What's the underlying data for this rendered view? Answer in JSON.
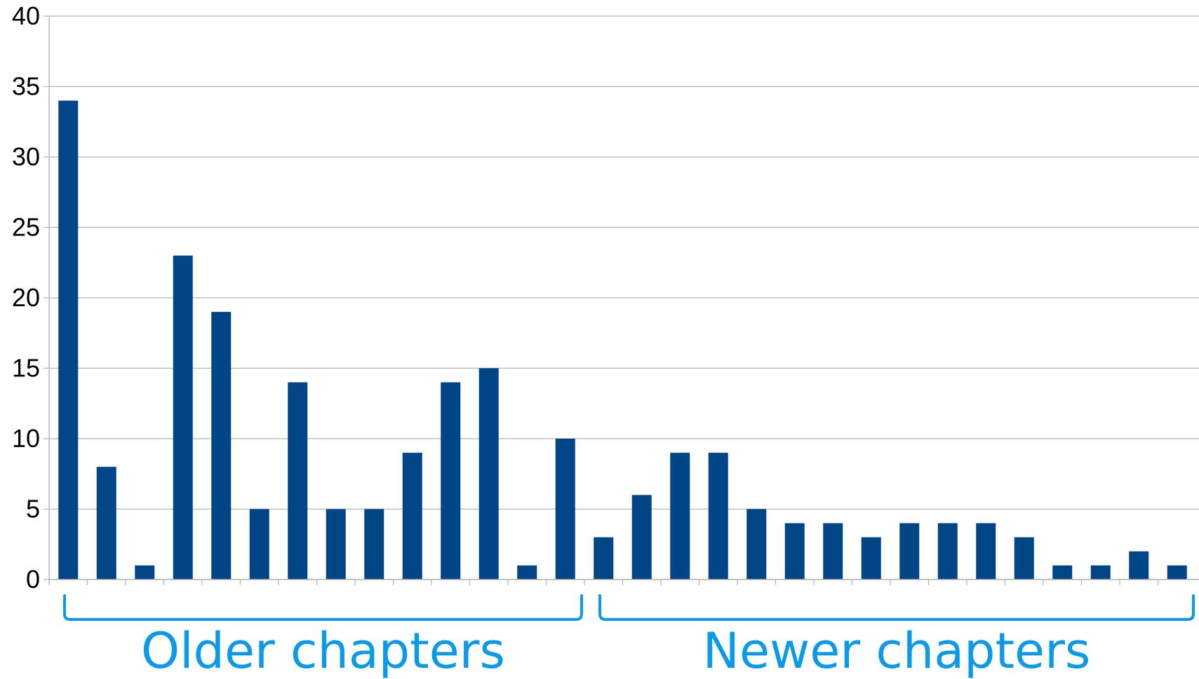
{
  "chart_data": {
    "type": "bar",
    "title": "",
    "xlabel": "",
    "ylabel": "",
    "ylim": [
      0,
      40
    ],
    "y_ticks": [
      "0",
      "5",
      "10",
      "15",
      "20",
      "25",
      "30",
      "35",
      "40"
    ],
    "grid": true,
    "values": [
      34,
      8,
      1,
      23,
      19,
      5,
      14,
      5,
      5,
      9,
      14,
      15,
      1,
      10,
      3,
      6,
      9,
      9,
      5,
      4,
      4,
      3,
      4,
      4,
      4,
      3,
      1,
      1,
      2,
      1
    ],
    "groups": [
      {
        "label": "Older chapters",
        "start": 0,
        "end": 13
      },
      {
        "label": "Newer chapters",
        "start": 14,
        "end": 29
      }
    ],
    "colors": {
      "bar": "#004586",
      "bracket": "#0a9ae9",
      "grid": "#b3b3b3",
      "axis": "#b3b3b3"
    }
  }
}
